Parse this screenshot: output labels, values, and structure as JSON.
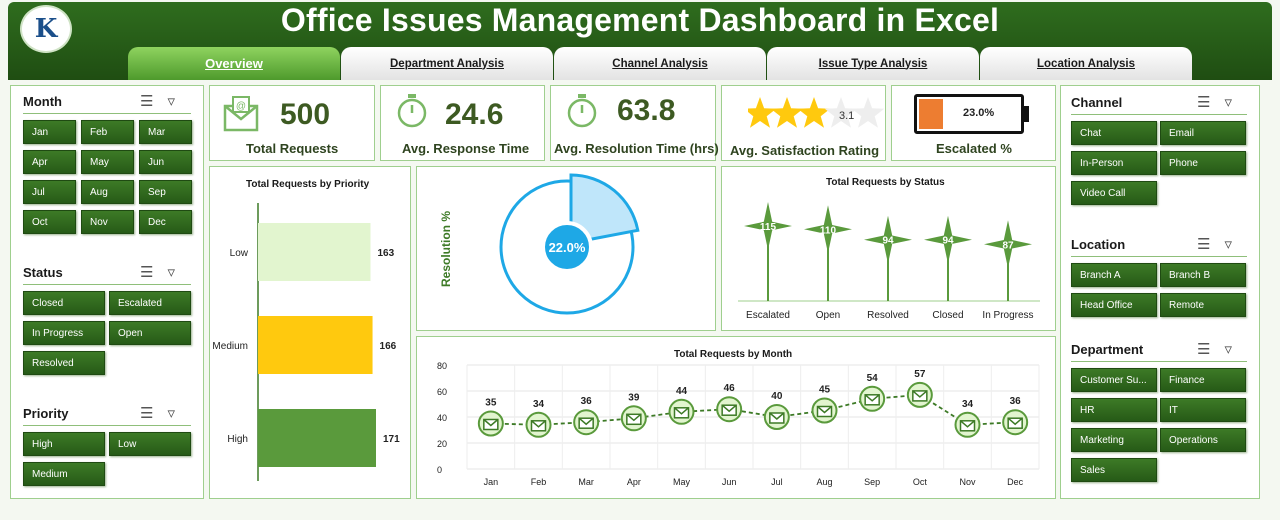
{
  "header": {
    "title": "Office Issues Management Dashboard in Excel",
    "logo_text": "K"
  },
  "tabs": [
    {
      "label": "Overview",
      "active": true
    },
    {
      "label": "Department Analysis"
    },
    {
      "label": "Channel Analysis"
    },
    {
      "label": "Issue Type Analysis"
    },
    {
      "label": "Location Analysis"
    }
  ],
  "filters_left": {
    "month": {
      "title": "Month",
      "items": [
        "Jan",
        "Feb",
        "Mar",
        "Apr",
        "May",
        "Jun",
        "Jul",
        "Aug",
        "Sep",
        "Oct",
        "Nov",
        "Dec"
      ]
    },
    "status": {
      "title": "Status",
      "items": [
        "Closed",
        "Escalated",
        "In Progress",
        "Open",
        "Resolved"
      ]
    },
    "priority": {
      "title": "Priority",
      "items": [
        "High",
        "Low",
        "Medium"
      ]
    }
  },
  "filters_right": {
    "channel": {
      "title": "Channel",
      "items": [
        "Chat",
        "Email",
        "In-Person",
        "Phone",
        "Video Call"
      ]
    },
    "location": {
      "title": "Location",
      "items": [
        "Branch A",
        "Branch B",
        "Head Office",
        "Remote"
      ]
    },
    "department": {
      "title": "Department",
      "items": [
        "Customer Su...",
        "Finance",
        "HR",
        "IT",
        "Marketing",
        "Operations",
        "Sales"
      ]
    }
  },
  "kpis": {
    "total": {
      "value": "500",
      "label": "Total Requests"
    },
    "response": {
      "value": "24.6",
      "label": "Avg. Response Time"
    },
    "resolution": {
      "value": "63.8",
      "label": "Avg. Resolution Time (hrs)"
    },
    "satisfaction": {
      "value": "3.1",
      "label": "Avg. Satisfaction Rating",
      "rating": 3.1,
      "max": 5
    },
    "escalated": {
      "value": "23.0%",
      "label": "Escalated %",
      "fraction": 0.23
    }
  },
  "colors": {
    "dark_green": "#2f6d1e",
    "light_green": "#e2f5cf",
    "yellow": "#ffc90e",
    "mid_green": "#5a9a3c",
    "orange": "#ed7d31",
    "blue": "#1ea8e6"
  },
  "chart_data": [
    {
      "type": "bar",
      "title": "Total Requests by Priority",
      "categories": [
        "Low",
        "Medium",
        "High"
      ],
      "values": [
        163,
        166,
        171
      ]
    },
    {
      "type": "pie",
      "ylabel": "Resolution %",
      "label": "22.0%",
      "values": [
        22.0,
        78.0
      ]
    },
    {
      "type": "scatter",
      "title": "Total Requests by Status",
      "categories": [
        "Escalated",
        "Open",
        "Resolved",
        "Closed",
        "In Progress"
      ],
      "values": [
        115,
        110,
        94,
        94,
        87
      ]
    },
    {
      "type": "line",
      "title": "Total Requests by Month",
      "categories": [
        "Jan",
        "Feb",
        "Mar",
        "Apr",
        "May",
        "Jun",
        "Jul",
        "Aug",
        "Sep",
        "Oct",
        "Nov",
        "Dec"
      ],
      "values": [
        35,
        34,
        36,
        39,
        44,
        46,
        40,
        45,
        54,
        57,
        34,
        36
      ],
      "ylim": [
        0,
        80
      ],
      "yticks": [
        "0",
        "20",
        "40",
        "60",
        "80"
      ]
    }
  ]
}
